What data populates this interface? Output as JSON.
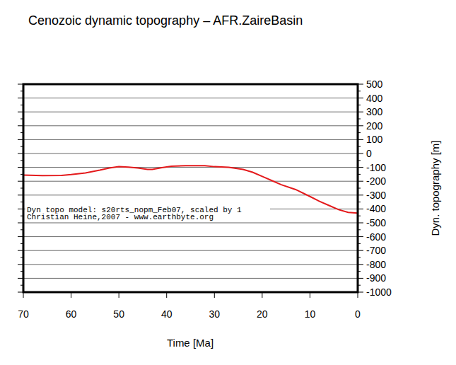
{
  "chart_data": {
    "type": "line",
    "title": "Cenozoic dynamic topography – AFR.ZaireBasin",
    "x_label": "Time [Ma]",
    "y_label": "Dyn. topography [m]",
    "annotations": [
      "Dyn topo model: s20rts_nopm_Feb07, scaled by 1",
      "Christian Heine,2007 - www.earthbyte.org"
    ],
    "x": [
      70,
      66,
      62,
      60,
      57,
      54,
      52,
      50,
      48,
      46,
      44,
      43,
      41,
      39,
      36,
      32,
      30,
      27,
      24,
      22,
      20,
      18,
      16,
      13,
      10,
      8,
      6,
      4,
      2,
      0
    ],
    "values": [
      -155,
      -160,
      -158,
      -152,
      -140,
      -120,
      -105,
      -95,
      -98,
      -105,
      -115,
      -115,
      -102,
      -92,
      -88,
      -88,
      -95,
      -100,
      -115,
      -135,
      -165,
      -195,
      -225,
      -260,
      -310,
      -345,
      -375,
      -405,
      -425,
      -430
    ],
    "color": "#e41a1c",
    "xlim": [
      70,
      0
    ],
    "ylim": [
      -1000,
      500
    ],
    "xticks": [
      70,
      60,
      50,
      40,
      30,
      20,
      10,
      0
    ],
    "yticks": [
      -1000,
      -900,
      -800,
      -700,
      -600,
      -500,
      -400,
      -300,
      -200,
      -100,
      0,
      100,
      200,
      300,
      400,
      500
    ],
    "grid": true
  }
}
